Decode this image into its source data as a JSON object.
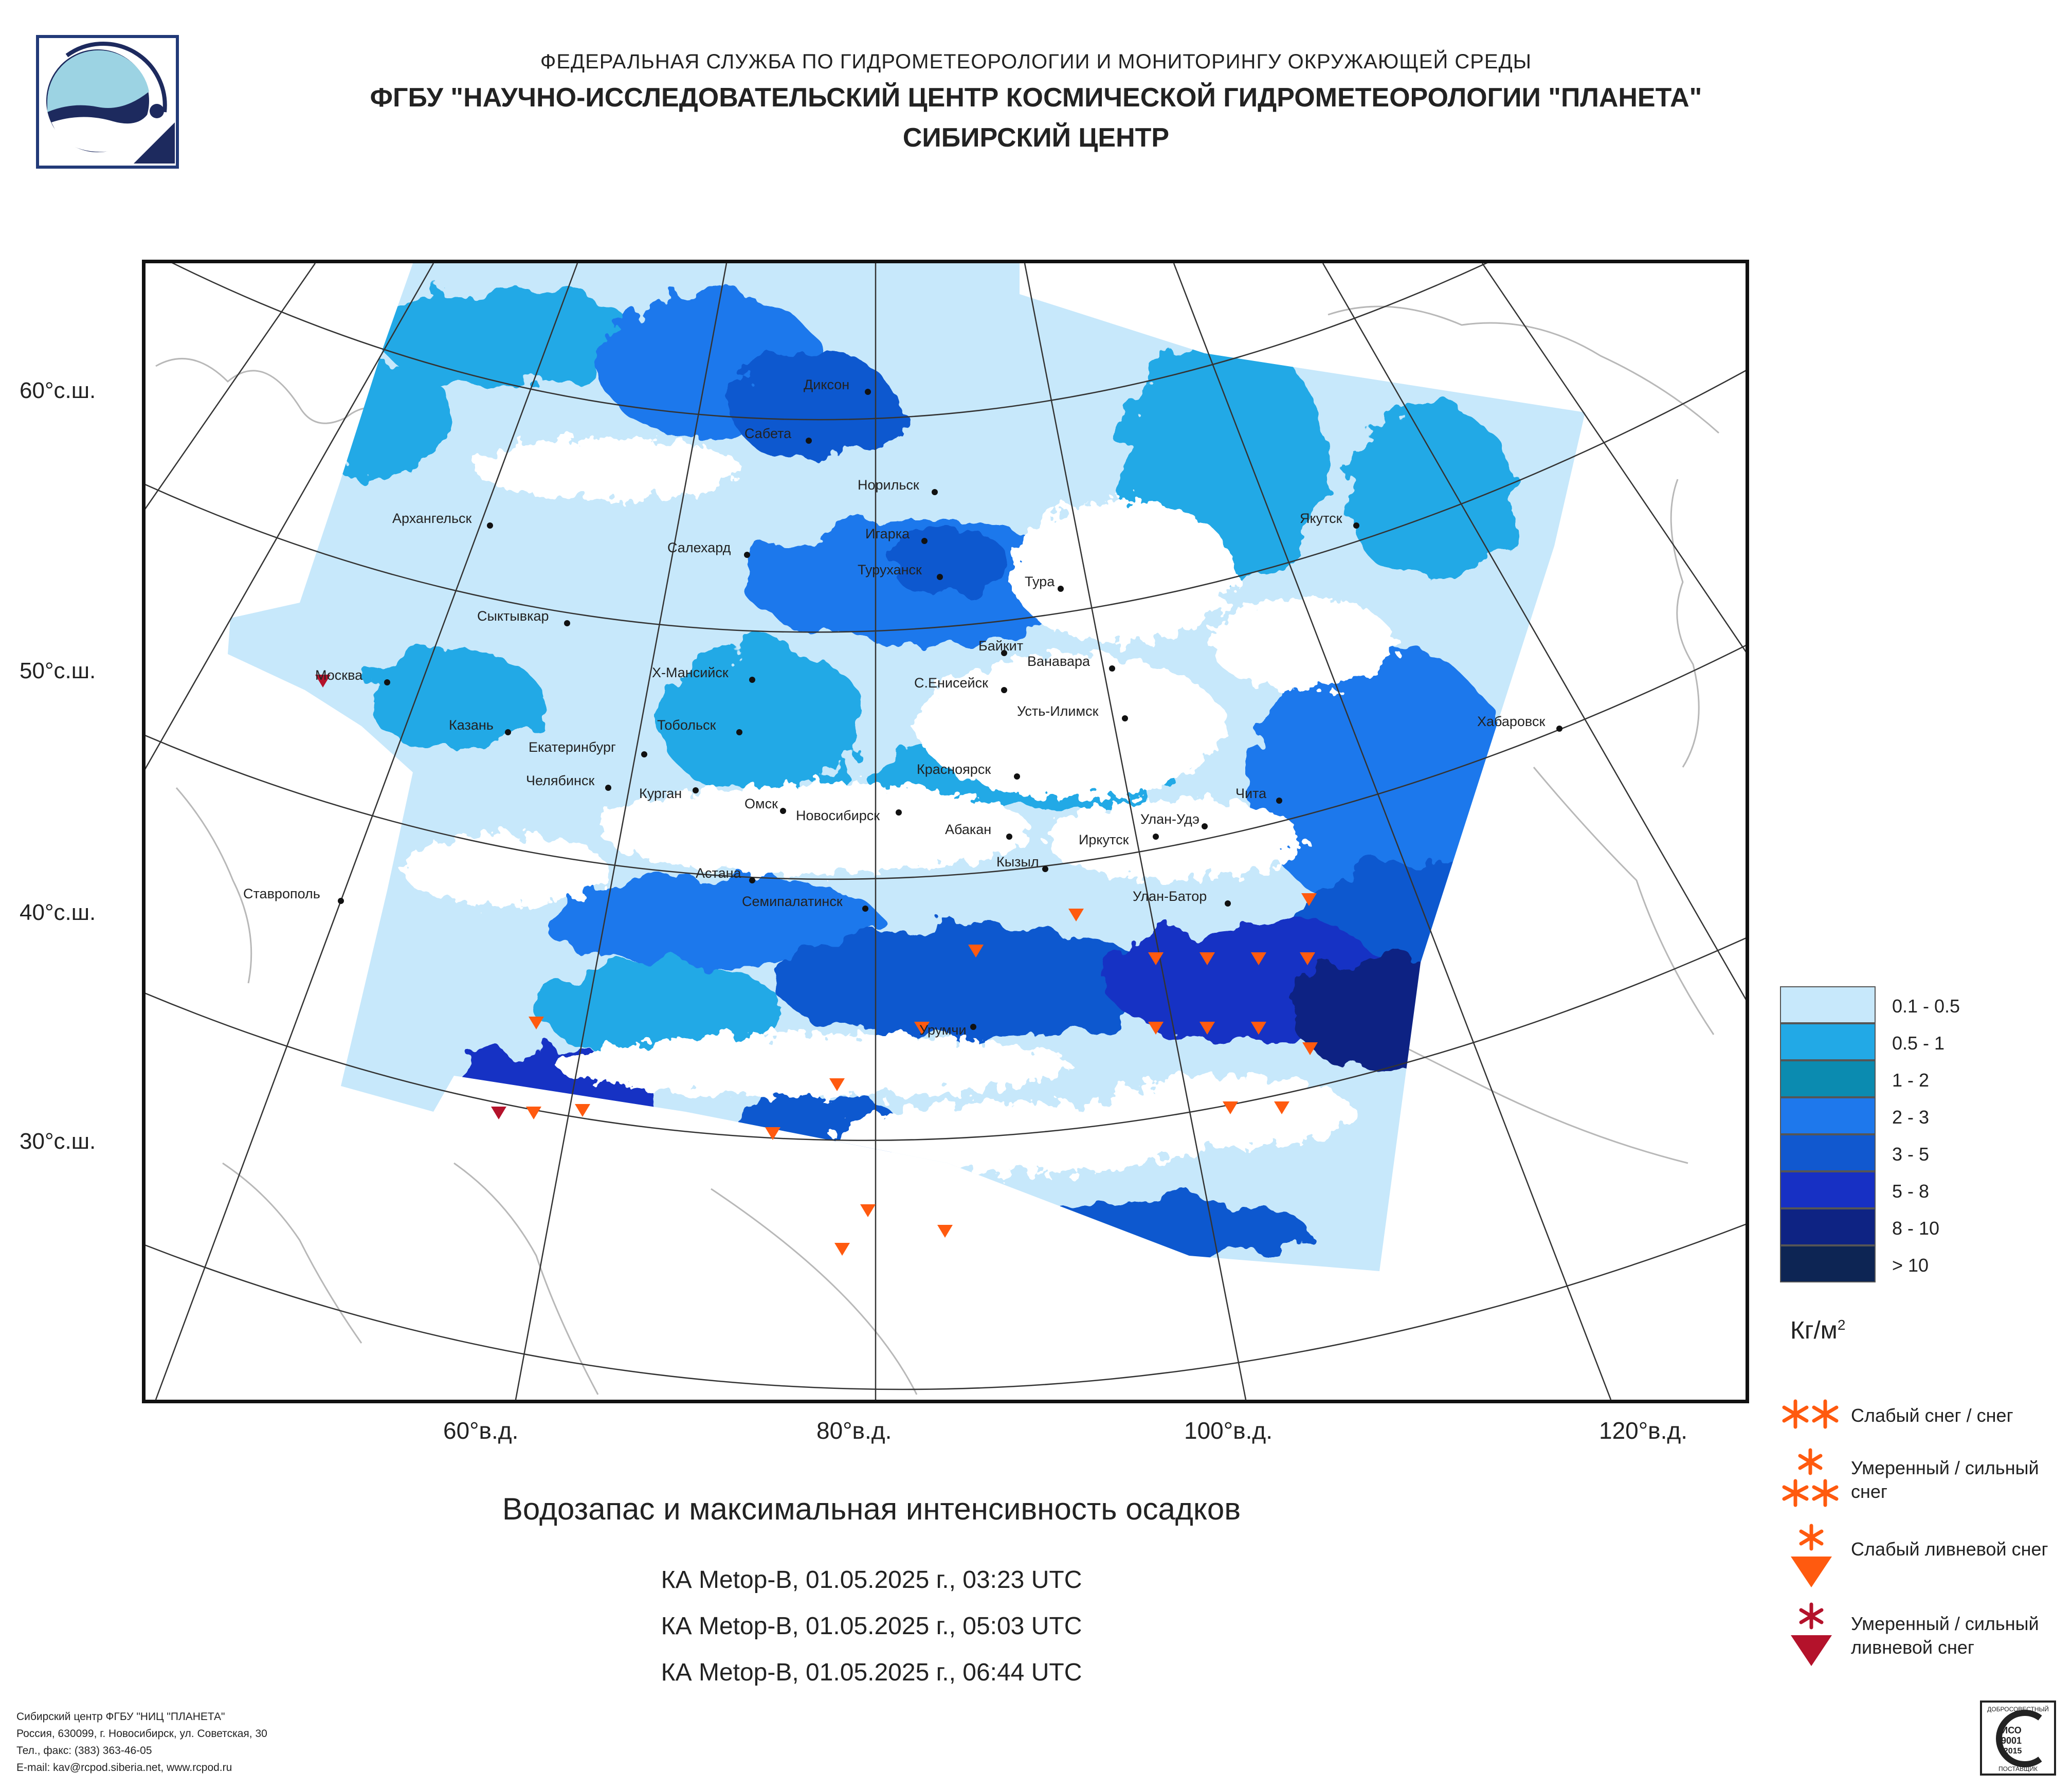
{
  "header": {
    "line1": "ФЕДЕРАЛЬНАЯ СЛУЖБА ПО ГИДРОМЕТЕОРОЛОГИИ И МОНИТОРИНГУ ОКРУЖАЮЩЕЙ СРЕДЫ",
    "line2": "ФГБУ \"НАУЧНО-ИССЛЕДОВАТЕЛЬСКИЙ ЦЕНТР КОСМИЧЕСКОЙ ГИДРОМЕТЕОРОЛОГИИ \"ПЛАНЕТА\"",
    "line3": "СИБИРСКИЙ ЦЕНТР"
  },
  "axes": {
    "lat_labels": [
      "60°с.ш.",
      "50°с.ш.",
      "40°с.ш.",
      "30°с.ш."
    ],
    "lon_labels": [
      "60°в.д.",
      "80°в.д.",
      "100°в.д.",
      "120°в.д."
    ]
  },
  "cities": [
    "Диксон",
    "Сабета",
    "Норильск",
    "Архангельск",
    "Салехард",
    "Игарка",
    "Туруханск",
    "Якутск",
    "Тура",
    "Сыктывкар",
    "Байкит",
    "Ванавара",
    "Москва",
    "Х-Мансийск",
    "С.Енисейск",
    "Усть-Илимск",
    "Казань",
    "Екатеринбург",
    "Тобольск",
    "Хабаровск",
    "Челябинск",
    "Курган",
    "Красноярск",
    "Чита",
    "Омск",
    "Новосибирск",
    "Абакан",
    "Улан-Удэ",
    "Иркутск",
    "Кызыл",
    "Астана",
    "Ставрополь",
    "Семипалатинск",
    "Улан-Батор",
    "Урумчи"
  ],
  "title": "Водозапас и максимальная интенсивность осадков",
  "passes": [
    "КА Metop-B, 01.05.2025 г., 03:23 UTC",
    "КА Metop-B, 01.05.2025 г., 05:03 UTC",
    "КА Metop-B, 01.05.2025 г., 06:44 UTC"
  ],
  "legend": {
    "classes": [
      {
        "label": "0.1 - 0.5",
        "color": "#c7e8fb"
      },
      {
        "label": "0.5 - 1",
        "color": "#22a9e6"
      },
      {
        "label": "1 - 2",
        "color": "#0b8bb0"
      },
      {
        "label": "2 - 3",
        "color": "#1e78ec"
      },
      {
        "label": "3 - 5",
        "color": "#1158cf"
      },
      {
        "label": "5 - 8",
        "color": "#1730c4"
      },
      {
        "label": "8 - 10",
        "color": "#0e2383"
      },
      {
        "label": "> 10",
        "color": "#0d2554"
      }
    ],
    "units_main": "Кг/м",
    "units_sup": "2",
    "symbols": [
      {
        "label_lines": [
          "Слабый снег / снег"
        ],
        "color": "#ff5a0f"
      },
      {
        "label_lines": [
          "Умеренный / сильный",
          "снег"
        ],
        "color": "#ff5a0f"
      },
      {
        "label_lines": [
          "Слабый ливневой снег"
        ],
        "color": "#ff5a0f"
      },
      {
        "label_lines": [
          "Умеренный / сильный",
          "ливневой снег"
        ],
        "color": "#b4122b"
      }
    ]
  },
  "footer": [
    "Сибирский центр ФГБУ \"НИЦ \"ПЛАНЕТА\"",
    "Россия, 630099, г. Новосибирск, ул. Советская, 30",
    "Тел., факс: (383) 363-46-05",
    "E-mail: kav@rcpod.siberia.net, www.rcpod.ru"
  ],
  "iso_badge": {
    "line_top": "ДОБРОСОВЕСТНЫЙ",
    "line1": "ИСО",
    "line2": "9001",
    "line3": "-2015",
    "line_bottom": "ПОСТАВЩИК"
  }
}
